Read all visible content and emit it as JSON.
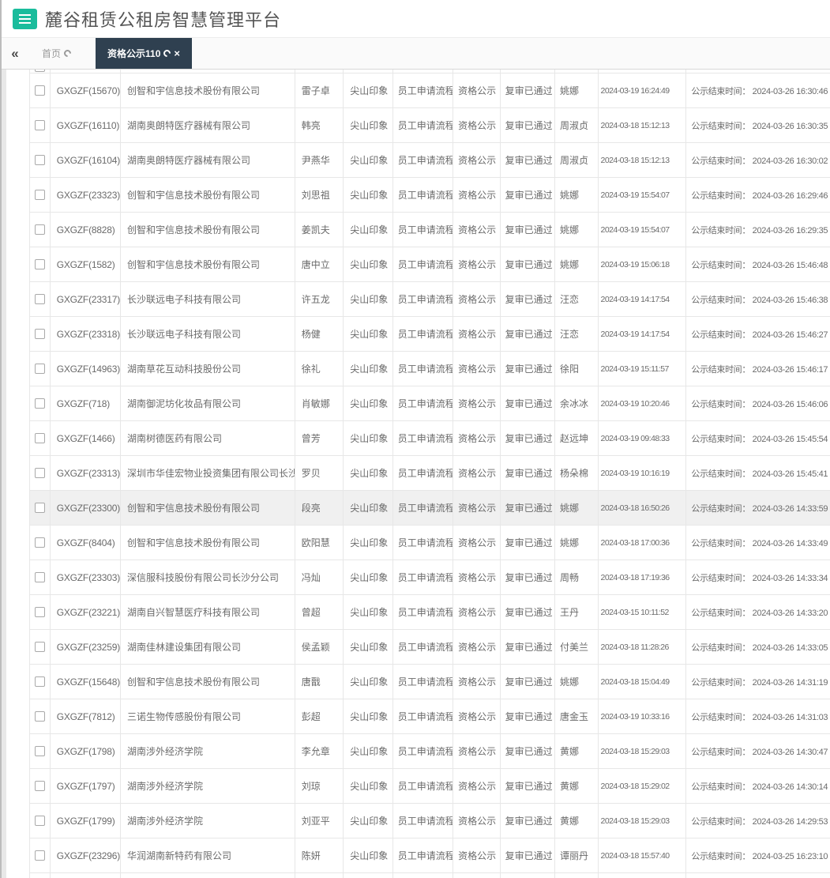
{
  "colors": {
    "accent_green": "#1abc9c",
    "tab_active_bg": "#2f4050",
    "row_highlight_bg": "#f0f0f0",
    "table_border": "#e7e7e7",
    "cell_text": "#6a6a6a"
  },
  "header": {
    "title": "麓谷租赁公租房智慧管理平台",
    "menu_icon": "hamburger-icon"
  },
  "tabbar": {
    "collapse_icon": "«",
    "tabs": [
      {
        "label": "首页",
        "active": false,
        "closable": false,
        "icons": [
          "refresh-icon"
        ]
      },
      {
        "label": "资格公示110",
        "active": true,
        "closable": true,
        "icons": [
          "refresh-icon",
          "close-icon"
        ]
      }
    ]
  },
  "table": {
    "remark_label": "公示结束时间：",
    "shared": {
      "project": "尖山印象",
      "flow": "员工申请流程",
      "node": "资格公示",
      "status": "复审已通过"
    },
    "rows": [
      {
        "code": "GXGZF(15670)",
        "company": "创智和宇信息技术股份有限公司",
        "name": "雷子卓",
        "project": "尖山印象",
        "flow": "员工申请流程",
        "node": "资格公示",
        "status": "复审已通过",
        "operator": "姚娜",
        "apply_time": "2024-03-19 16:24:49",
        "end_time": "2024-03-26 16:30:46",
        "highlighted": false
      },
      {
        "code": "GXGZF(16110)",
        "company": "湖南奥朗特医疗器械有限公司",
        "name": "韩亮",
        "project": "尖山印象",
        "flow": "员工申请流程",
        "node": "资格公示",
        "status": "复审已通过",
        "operator": "周淑贞",
        "apply_time": "2024-03-18 15:12:13",
        "end_time": "2024-03-26 16:30:35",
        "highlighted": false
      },
      {
        "code": "GXGZF(16104)",
        "company": "湖南奥朗特医疗器械有限公司",
        "name": "尹燕华",
        "project": "尖山印象",
        "flow": "员工申请流程",
        "node": "资格公示",
        "status": "复审已通过",
        "operator": "周淑贞",
        "apply_time": "2024-03-18 15:12:13",
        "end_time": "2024-03-26 16:30:02",
        "highlighted": false
      },
      {
        "code": "GXGZF(23323)",
        "company": "创智和宇信息技术股份有限公司",
        "name": "刘思祖",
        "project": "尖山印象",
        "flow": "员工申请流程",
        "node": "资格公示",
        "status": "复审已通过",
        "operator": "姚娜",
        "apply_time": "2024-03-19 15:54:07",
        "end_time": "2024-03-26 16:29:46",
        "highlighted": false
      },
      {
        "code": "GXGZF(8828)",
        "company": "创智和宇信息技术股份有限公司",
        "name": "姜凯夫",
        "project": "尖山印象",
        "flow": "员工申请流程",
        "node": "资格公示",
        "status": "复审已通过",
        "operator": "姚娜",
        "apply_time": "2024-03-19 15:54:07",
        "end_time": "2024-03-26 16:29:35",
        "highlighted": false
      },
      {
        "code": "GXGZF(1582)",
        "company": "创智和宇信息技术股份有限公司",
        "name": "唐中立",
        "project": "尖山印象",
        "flow": "员工申请流程",
        "node": "资格公示",
        "status": "复审已通过",
        "operator": "姚娜",
        "apply_time": "2024-03-19 15:06:18",
        "end_time": "2024-03-26 15:46:48",
        "highlighted": false
      },
      {
        "code": "GXGZF(23317)",
        "company": "长沙联远电子科技有限公司",
        "name": "许五龙",
        "project": "尖山印象",
        "flow": "员工申请流程",
        "node": "资格公示",
        "status": "复审已通过",
        "operator": "汪恋",
        "apply_time": "2024-03-19 14:17:54",
        "end_time": "2024-03-26 15:46:38",
        "highlighted": false
      },
      {
        "code": "GXGZF(23318)",
        "company": "长沙联远电子科技有限公司",
        "name": "杨健",
        "project": "尖山印象",
        "flow": "员工申请流程",
        "node": "资格公示",
        "status": "复审已通过",
        "operator": "汪恋",
        "apply_time": "2024-03-19 14:17:54",
        "end_time": "2024-03-26 15:46:27",
        "highlighted": false
      },
      {
        "code": "GXGZF(14963)",
        "company": "湖南草花互动科技股份公司",
        "name": "徐礼",
        "project": "尖山印象",
        "flow": "员工申请流程",
        "node": "资格公示",
        "status": "复审已通过",
        "operator": "徐阳",
        "apply_time": "2024-03-19 15:11:57",
        "end_time": "2024-03-26 15:46:17",
        "highlighted": false
      },
      {
        "code": "GXGZF(718)",
        "company": "湖南御泥坊化妆品有限公司",
        "name": "肖敏娜",
        "project": "尖山印象",
        "flow": "员工申请流程",
        "node": "资格公示",
        "status": "复审已通过",
        "operator": "余冰冰",
        "apply_time": "2024-03-19 10:20:46",
        "end_time": "2024-03-26 15:46:06",
        "highlighted": false
      },
      {
        "code": "GXGZF(1466)",
        "company": "湖南树德医药有限公司",
        "name": "曾芳",
        "project": "尖山印象",
        "flow": "员工申请流程",
        "node": "资格公示",
        "status": "复审已通过",
        "operator": "赵远坤",
        "apply_time": "2024-03-19 09:48:33",
        "end_time": "2024-03-26 15:45:54",
        "highlighted": false
      },
      {
        "code": "GXGZF(23313)",
        "company": "深圳市华佳宏物业投资集团有限公司长沙分公司",
        "name": "罗贝",
        "project": "尖山印象",
        "flow": "员工申请流程",
        "node": "资格公示",
        "status": "复审已通过",
        "operator": "杨朵棉",
        "apply_time": "2024-03-19 10:16:19",
        "end_time": "2024-03-26 15:45:41",
        "highlighted": false
      },
      {
        "code": "GXGZF(23300)",
        "company": "创智和宇信息技术股份有限公司",
        "name": "段亮",
        "project": "尖山印象",
        "flow": "员工申请流程",
        "node": "资格公示",
        "status": "复审已通过",
        "operator": "姚娜",
        "apply_time": "2024-03-18 16:50:26",
        "end_time": "2024-03-26 14:33:59",
        "highlighted": true
      },
      {
        "code": "GXGZF(8404)",
        "company": "创智和宇信息技术股份有限公司",
        "name": "欧阳慧",
        "project": "尖山印象",
        "flow": "员工申请流程",
        "node": "资格公示",
        "status": "复审已通过",
        "operator": "姚娜",
        "apply_time": "2024-03-18 17:00:36",
        "end_time": "2024-03-26 14:33:49",
        "highlighted": false
      },
      {
        "code": "GXGZF(23303)",
        "company": "深信服科技股份有限公司长沙分公司",
        "name": "冯灿",
        "project": "尖山印象",
        "flow": "员工申请流程",
        "node": "资格公示",
        "status": "复审已通过",
        "operator": "周畅",
        "apply_time": "2024-03-18 17:19:36",
        "end_time": "2024-03-26 14:33:34",
        "highlighted": false
      },
      {
        "code": "GXGZF(23221)",
        "company": "湖南自兴智慧医疗科技有限公司",
        "name": "曾超",
        "project": "尖山印象",
        "flow": "员工申请流程",
        "node": "资格公示",
        "status": "复审已通过",
        "operator": "王丹",
        "apply_time": "2024-03-15 10:11:52",
        "end_time": "2024-03-26 14:33:20",
        "highlighted": false
      },
      {
        "code": "GXGZF(23259)",
        "company": "湖南佳林建设集团有限公司",
        "name": "侯孟颖",
        "project": "尖山印象",
        "flow": "员工申请流程",
        "node": "资格公示",
        "status": "复审已通过",
        "operator": "付美兰",
        "apply_time": "2024-03-18 11:28:26",
        "end_time": "2024-03-26 14:33:05",
        "highlighted": false
      },
      {
        "code": "GXGZF(15648)",
        "company": "创智和宇信息技术股份有限公司",
        "name": "唐戬",
        "project": "尖山印象",
        "flow": "员工申请流程",
        "node": "资格公示",
        "status": "复审已通过",
        "operator": "姚娜",
        "apply_time": "2024-03-18 15:04:49",
        "end_time": "2024-03-26 14:31:19",
        "highlighted": false
      },
      {
        "code": "GXGZF(7812)",
        "company": "三诺生物传感股份有限公司",
        "name": "彭超",
        "project": "尖山印象",
        "flow": "员工申请流程",
        "node": "资格公示",
        "status": "复审已通过",
        "operator": "唐金玉",
        "apply_time": "2024-03-19 10:33:16",
        "end_time": "2024-03-26 14:31:03",
        "highlighted": false
      },
      {
        "code": "GXGZF(1798)",
        "company": "湖南涉外经济学院",
        "name": "李允章",
        "project": "尖山印象",
        "flow": "员工申请流程",
        "node": "资格公示",
        "status": "复审已通过",
        "operator": "黄娜",
        "apply_time": "2024-03-18 15:29:03",
        "end_time": "2024-03-26 14:30:47",
        "highlighted": false
      },
      {
        "code": "GXGZF(1797)",
        "company": "湖南涉外经济学院",
        "name": "刘琼",
        "project": "尖山印象",
        "flow": "员工申请流程",
        "node": "资格公示",
        "status": "复审已通过",
        "operator": "黄娜",
        "apply_time": "2024-03-18 15:29:02",
        "end_time": "2024-03-26 14:30:14",
        "highlighted": false
      },
      {
        "code": "GXGZF(1799)",
        "company": "湖南涉外经济学院",
        "name": "刘亚平",
        "project": "尖山印象",
        "flow": "员工申请流程",
        "node": "资格公示",
        "status": "复审已通过",
        "operator": "黄娜",
        "apply_time": "2024-03-18 15:29:03",
        "end_time": "2024-03-26 14:29:53",
        "highlighted": false
      },
      {
        "code": "GXGZF(23296)",
        "company": "华润湖南新特药有限公司",
        "name": "陈妍",
        "project": "尖山印象",
        "flow": "员工申请流程",
        "node": "资格公示",
        "status": "复审已通过",
        "operator": "谭丽丹",
        "apply_time": "2024-03-18 15:57:40",
        "end_time": "2024-03-25 16:23:10",
        "highlighted": false
      }
    ]
  }
}
